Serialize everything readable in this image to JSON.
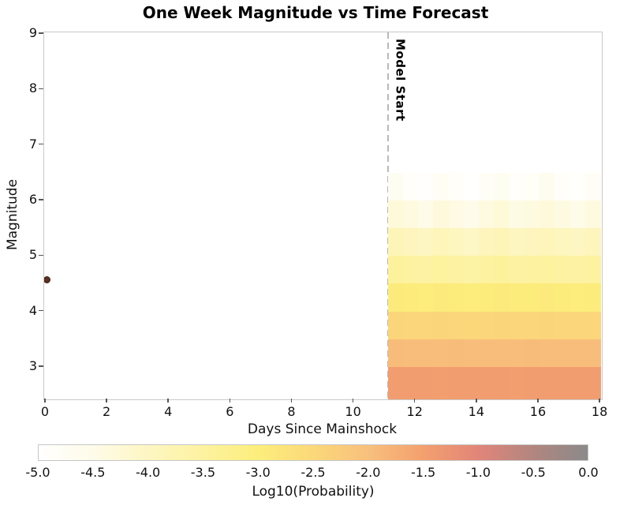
{
  "chart_data": {
    "type": "heatmap",
    "title": "One Week Magnitude vs Time Forecast",
    "xlabel": "Days Since Mainshock",
    "ylabel": "Magnitude",
    "xlim": [
      0,
      18
    ],
    "ylim": [
      2.4,
      9.05
    ],
    "x_ticks": [
      0,
      2,
      4,
      6,
      8,
      10,
      12,
      14,
      16,
      18
    ],
    "y_ticks": [
      3,
      4,
      5,
      6,
      7,
      8,
      9
    ],
    "grid": false,
    "annotations": {
      "model_start": {
        "label": "Model Start",
        "x": 11.1,
        "style": "dashed-vertical-line",
        "color": "#b9b9b9"
      },
      "mainshock_point": {
        "x": 0,
        "magnitude": 4.57,
        "color": "#5a3122"
      }
    },
    "heatmap": {
      "x_start": 11.1,
      "x_end": 18,
      "columns": 14,
      "magnitude_bin_edges": [
        2.4,
        3.0,
        3.5,
        4.0,
        4.5,
        5.0,
        5.5,
        6.0,
        6.5
      ],
      "log10_probability_rows_bottom_to_top": [
        [
          -1.44,
          -1.45,
          -1.45,
          -1.46,
          -1.45,
          -1.44,
          -1.45,
          -1.45,
          -1.46,
          -1.45,
          -1.45,
          -1.44,
          -1.45,
          -1.45
        ],
        [
          -1.94,
          -1.95,
          -1.96,
          -1.95,
          -1.94,
          -1.95,
          -1.96,
          -1.95,
          -1.95,
          -1.94,
          -1.95,
          -1.96,
          -1.95,
          -1.95
        ],
        [
          -2.43,
          -2.45,
          -2.46,
          -2.44,
          -2.45,
          -2.47,
          -2.45,
          -2.44,
          -2.46,
          -2.45,
          -2.44,
          -2.45,
          -2.46,
          -2.45
        ],
        [
          -2.93,
          -2.95,
          -2.97,
          -2.94,
          -2.96,
          -2.98,
          -2.95,
          -2.93,
          -2.96,
          -2.95,
          -2.94,
          -2.96,
          -2.97,
          -2.95
        ],
        [
          -3.45,
          -3.5,
          -3.55,
          -3.47,
          -3.52,
          -3.58,
          -3.5,
          -3.45,
          -3.53,
          -3.5,
          -3.47,
          -3.51,
          -3.56,
          -3.5
        ],
        [
          -3.85,
          -3.93,
          -4.0,
          -3.88,
          -3.95,
          -4.04,
          -3.91,
          -3.85,
          -3.97,
          -3.92,
          -3.87,
          -3.94,
          -4.01,
          -3.91
        ],
        [
          -4.3,
          -4.4,
          -4.5,
          -4.34,
          -4.44,
          -4.55,
          -4.38,
          -4.28,
          -4.46,
          -4.4,
          -4.33,
          -4.42,
          -4.52,
          -4.38
        ],
        [
          -4.72,
          -4.84,
          -4.93,
          -4.76,
          -4.87,
          -4.96,
          -4.8,
          -4.7,
          -4.9,
          -4.83,
          -4.62,
          -4.86,
          -4.94,
          -4.79
        ]
      ]
    },
    "colorbar": {
      "label": "Log10(Probability)",
      "tick_labels": [
        "-5.0",
        "-4.5",
        "-4.0",
        "-3.5",
        "-3.0",
        "-2.5",
        "-2.0",
        "-1.5",
        "-1.0",
        "-0.5",
        "0.0"
      ],
      "range": [
        -5,
        0
      ],
      "stops": [
        {
          "value": -5.0,
          "color": "#ffffff"
        },
        {
          "value": -4.5,
          "color": "#fefbe8"
        },
        {
          "value": -4.0,
          "color": "#fdf6c2"
        },
        {
          "value": -3.5,
          "color": "#fdf2a0"
        },
        {
          "value": -3.0,
          "color": "#fcee7c"
        },
        {
          "value": -2.5,
          "color": "#fbd87a"
        },
        {
          "value": -2.0,
          "color": "#f8c07c"
        },
        {
          "value": -1.5,
          "color": "#f4a06e"
        },
        {
          "value": -1.0,
          "color": "#e28579"
        },
        {
          "value": -0.5,
          "color": "#b2867f"
        },
        {
          "value": 0.0,
          "color": "#8a8a8a"
        }
      ]
    }
  }
}
